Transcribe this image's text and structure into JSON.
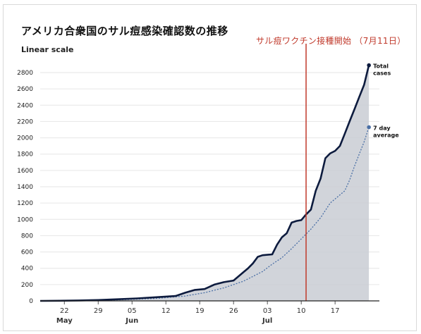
{
  "header": {
    "title": "アメリカ合衆国のサル痘感染確認数の推移",
    "scale_label": "Linear scale",
    "annotation": "サル痘ワクチン接種開始 （7月11日）"
  },
  "colors": {
    "total_line": "#0d1b3e",
    "average_line": "#4a6fa5",
    "area_fill": "#c9cdd3",
    "marker_line": "#c0392b",
    "grid": "#e6e6e6"
  },
  "chart_data": {
    "type": "area",
    "title": "アメリカ合衆国のサル痘感染確認数の推移",
    "ylabel": "Linear scale",
    "xlim": [
      0,
      69
    ],
    "ylim": [
      0,
      2800
    ],
    "yticks": [
      0,
      200,
      400,
      600,
      800,
      1000,
      1200,
      1400,
      1600,
      1800,
      2000,
      2200,
      2400,
      2600,
      2800
    ],
    "xticks": [
      {
        "x": 5,
        "label": "22",
        "month": "May"
      },
      {
        "x": 12,
        "label": "29",
        "month": ""
      },
      {
        "x": 19,
        "label": "05",
        "month": "Jun"
      },
      {
        "x": 26,
        "label": "12",
        "month": ""
      },
      {
        "x": 33,
        "label": "19",
        "month": ""
      },
      {
        "x": 40,
        "label": "26",
        "month": ""
      },
      {
        "x": 47,
        "label": "03",
        "month": "Jul"
      },
      {
        "x": 54,
        "label": "10",
        "month": ""
      },
      {
        "x": 61,
        "label": "17",
        "month": ""
      }
    ],
    "vaccination_marker": {
      "x": 55
    },
    "series": [
      {
        "name": "Total cases",
        "x": [
          0,
          4,
          8,
          12,
          16,
          20,
          24,
          28,
          30,
          32,
          34,
          36,
          38,
          40,
          42,
          43,
          44,
          45,
          46,
          48,
          49,
          50,
          51,
          52,
          53,
          54,
          55,
          56,
          57,
          58,
          59,
          60,
          61,
          62,
          63,
          64,
          65,
          66,
          67,
          68
        ],
        "values": [
          0,
          2,
          5,
          10,
          20,
          30,
          45,
          60,
          100,
          135,
          145,
          200,
          230,
          250,
          350,
          400,
          460,
          540,
          560,
          570,
          690,
          780,
          830,
          960,
          980,
          990,
          1060,
          1120,
          1350,
          1500,
          1750,
          1810,
          1840,
          1900,
          2050,
          2200,
          2350,
          2500,
          2650,
          2890
        ]
      },
      {
        "name": "7 day average",
        "x": [
          0,
          8,
          16,
          24,
          30,
          34,
          38,
          42,
          44,
          46,
          48,
          50,
          52,
          54,
          55,
          56,
          58,
          60,
          62,
          63,
          64,
          65,
          66,
          67,
          68
        ],
        "values": [
          0,
          3,
          12,
          30,
          60,
          100,
          160,
          240,
          300,
          360,
          450,
          530,
          640,
          760,
          820,
          880,
          1020,
          1200,
          1300,
          1350,
          1480,
          1650,
          1800,
          1950,
          2130
        ]
      }
    ],
    "labels": {
      "total": [
        "Total",
        "cases"
      ],
      "average": [
        "7 day",
        "average"
      ]
    }
  }
}
